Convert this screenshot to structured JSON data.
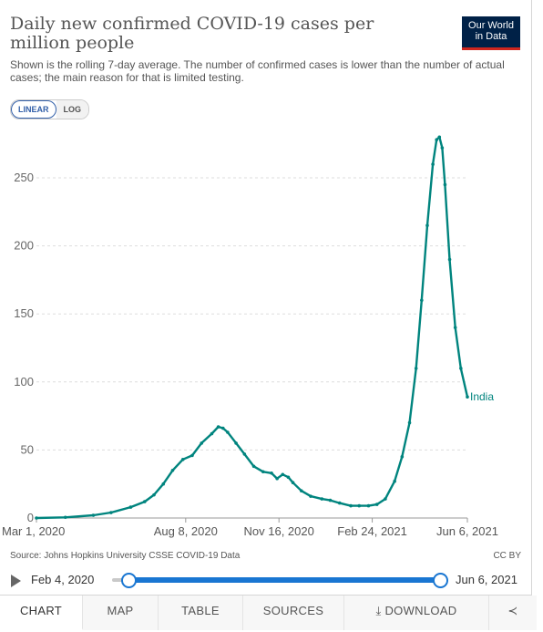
{
  "header": {
    "title": "Daily new confirmed COVID-19 cases per million people",
    "subtitle": "Shown is the rolling 7-day average. The number of confirmed cases is lower than the number of actual cases; the main reason for that is limited testing.",
    "logo_line1": "Our World",
    "logo_line2": "in Data"
  },
  "scale_toggle": {
    "linear": "LINEAR",
    "log": "LOG",
    "selected": "LINEAR"
  },
  "colors": {
    "series": "#00847e",
    "grid": "#dddddd",
    "slider": "#1976d2",
    "logo_bg": "#002147",
    "logo_bar": "#ce261e"
  },
  "chart_data": {
    "type": "line",
    "title": "Daily new confirmed COVID-19 cases per million people",
    "ylim": [
      0,
      280
    ],
    "yticks": [
      "0",
      "50",
      "100",
      "150",
      "200",
      "250"
    ],
    "yticks_values": [
      0,
      50,
      100,
      150,
      200,
      250
    ],
    "xticks": [
      "Mar 1, 2020",
      "Aug 8, 2020",
      "Nov 16, 2020",
      "Feb 24, 2021",
      "Jun 6, 2021"
    ],
    "xticks_values": [
      "2020-03-01",
      "2020-08-08",
      "2020-11-16",
      "2021-02-24",
      "2021-06-06"
    ],
    "grid": true,
    "series": [
      {
        "name": "India",
        "x": [
          "2020-03-01",
          "2020-04-01",
          "2020-05-01",
          "2020-05-20",
          "2020-06-10",
          "2020-06-25",
          "2020-07-05",
          "2020-07-15",
          "2020-07-25",
          "2020-08-05",
          "2020-08-15",
          "2020-08-25",
          "2020-09-05",
          "2020-09-12",
          "2020-09-17",
          "2020-09-22",
          "2020-10-01",
          "2020-10-10",
          "2020-10-20",
          "2020-10-30",
          "2020-11-08",
          "2020-11-14",
          "2020-11-20",
          "2020-11-26",
          "2020-12-01",
          "2020-12-10",
          "2020-12-20",
          "2021-01-01",
          "2021-01-10",
          "2021-01-20",
          "2021-02-01",
          "2021-02-10",
          "2021-02-20",
          "2021-03-01",
          "2021-03-10",
          "2021-03-20",
          "2021-03-28",
          "2021-04-05",
          "2021-04-12",
          "2021-04-18",
          "2021-04-24",
          "2021-04-30",
          "2021-05-04",
          "2021-05-07",
          "2021-05-10",
          "2021-05-13",
          "2021-05-18",
          "2021-05-24",
          "2021-05-30",
          "2021-06-06"
        ],
        "y": [
          0,
          0.5,
          2,
          4,
          8,
          12,
          17,
          25,
          35,
          43,
          46,
          55,
          62,
          67,
          66,
          63,
          55,
          47,
          38,
          34,
          33,
          29,
          32,
          30,
          26,
          20,
          16,
          14,
          13,
          11,
          9,
          9,
          9,
          10,
          14,
          27,
          45,
          70,
          110,
          160,
          215,
          260,
          278,
          280,
          272,
          245,
          190,
          140,
          110,
          89
        ]
      }
    ],
    "end_label": "India"
  },
  "footer": {
    "source": "Source: Johns Hopkins University CSSE COVID-19 Data",
    "license": "CC BY",
    "timeline_start": "Feb 4, 2020",
    "timeline_end": "Jun 6, 2021"
  },
  "tabs": [
    {
      "label": "CHART"
    },
    {
      "label": "MAP"
    },
    {
      "label": "TABLE"
    },
    {
      "label": "SOURCES"
    },
    {
      "label": "⤓ DOWNLOAD"
    },
    {
      "label": "≺"
    }
  ]
}
